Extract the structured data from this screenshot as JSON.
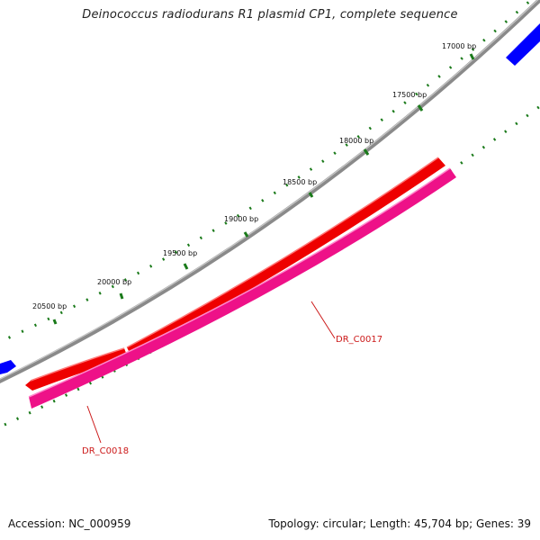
{
  "title": "Deinococcus radiodurans R1 plasmid CP1, complete sequence",
  "footer": {
    "accession": "Accession: NC_000959",
    "summary": "Topology: circular; Length: 45,704 bp; Genes: 39"
  },
  "ticks": [
    "17000 bp",
    "17500 bp",
    "18000 bp",
    "18500 bp",
    "19000 bp",
    "19500 bp",
    "20000 bp",
    "20500 bp"
  ],
  "genes": [
    {
      "name": "DR_C0017",
      "color": "#ff0000"
    },
    {
      "name": "DR_C0018",
      "color": "#ff0066"
    }
  ],
  "colors": {
    "backbone": "#808080",
    "outer_ticks": "#1a7a1a",
    "forward_gene": "#ee0000",
    "reverse_gene": "#ee1188",
    "neighbor_gene": "#0000ff",
    "label": "#cc1a1a"
  }
}
